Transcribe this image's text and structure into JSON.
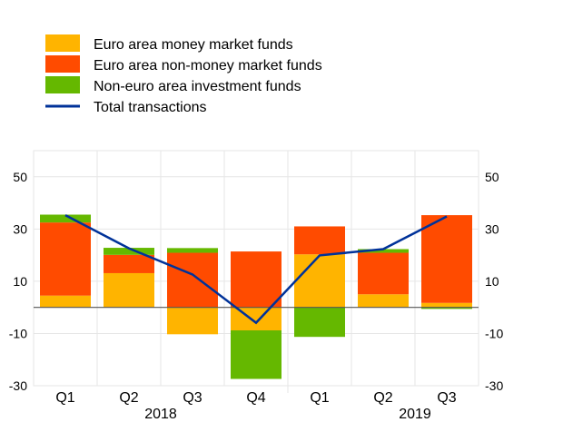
{
  "chart_data": {
    "type": "bar",
    "stacked": true,
    "title": "",
    "xlabel": "",
    "ylabel": "",
    "ylim": [
      -30,
      60
    ],
    "yticks": [
      50,
      30,
      10,
      -10,
      -30
    ],
    "grid": true,
    "legend_position": "top-left",
    "categories": [
      "Q1",
      "Q2",
      "Q3",
      "Q4",
      "Q1",
      "Q2",
      "Q3"
    ],
    "year_labels": [
      {
        "label": "2018",
        "between": [
          1,
          2
        ]
      },
      {
        "label": "2019",
        "between": [
          5,
          6
        ]
      }
    ],
    "series": [
      {
        "name": "Euro area money market funds",
        "kind": "bar",
        "color": "#FFB400",
        "values": [
          4.5,
          13.1,
          -10.3,
          -8.8,
          20.3,
          5.0,
          1.7
        ]
      },
      {
        "name": "Euro area non-money market funds",
        "kind": "bar",
        "color": "#FF4B00",
        "values": [
          28.0,
          7.0,
          20.9,
          21.4,
          10.7,
          15.9,
          33.6
        ]
      },
      {
        "name": "Non-euro area investment funds",
        "kind": "bar",
        "color": "#65B800",
        "values": [
          3.0,
          2.7,
          1.8,
          -18.6,
          -11.3,
          1.4,
          -0.6
        ]
      },
      {
        "name": "Total transactions",
        "kind": "line",
        "color": "#003299",
        "values": [
          35.3,
          22.6,
          12.6,
          -5.9,
          19.9,
          22.3,
          34.8
        ]
      }
    ]
  }
}
